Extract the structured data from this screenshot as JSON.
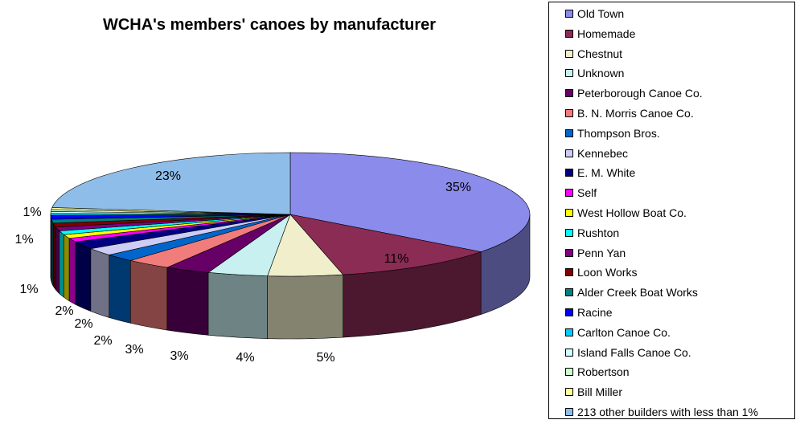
{
  "chart_data": {
    "type": "pie",
    "title": "WCHA's members' canoes by manufacturer",
    "legend_position": "right",
    "slices": [
      {
        "name": "Old Town",
        "value": 35,
        "label": "35%",
        "color": "#8b8beb"
      },
      {
        "name": "Homemade",
        "value": 11,
        "label": "11%",
        "color": "#8b2c55"
      },
      {
        "name": "Chestnut",
        "value": 5,
        "label": "5%",
        "color": "#f0eecb"
      },
      {
        "name": "Unknown",
        "value": 4,
        "label": "4%",
        "color": "#c8f0f0"
      },
      {
        "name": "Peterborough Canoe Co.",
        "value": 3,
        "label": "3%",
        "color": "#660066"
      },
      {
        "name": "B. N. Morris Canoe Co.",
        "value": 3,
        "label": "3%",
        "color": "#f07c7c"
      },
      {
        "name": "Thompson Bros.",
        "value": 2,
        "label": "2%",
        "color": "#0066cc"
      },
      {
        "name": "Kennebec",
        "value": 2,
        "label": "2%",
        "color": "#ccccf5"
      },
      {
        "name": "E. M. White",
        "value": 2,
        "label": "2%",
        "color": "#000080"
      },
      {
        "name": "Self",
        "value": 1,
        "label": "1%",
        "color": "#ff00ff"
      },
      {
        "name": "West Hollow Boat Co.",
        "value": 1,
        "label": "",
        "color": "#ffff00"
      },
      {
        "name": "Rushton",
        "value": 1,
        "label": "1%",
        "color": "#00ffff"
      },
      {
        "name": "Penn Yan",
        "value": 1,
        "label": "",
        "color": "#800080"
      },
      {
        "name": "Loon Works",
        "value": 1,
        "label": "",
        "color": "#800000"
      },
      {
        "name": "Alder Creek Boat Works",
        "value": 1,
        "label": "",
        "color": "#008080"
      },
      {
        "name": "Racine",
        "value": 1,
        "label": "1%",
        "color": "#0000ff"
      },
      {
        "name": "Carlton Canoe Co.",
        "value": 0.5,
        "label": "",
        "color": "#00ccff"
      },
      {
        "name": "Island Falls Canoe Co.",
        "value": 0.5,
        "label": "",
        "color": "#ccffff"
      },
      {
        "name": "Robertson",
        "value": 0.5,
        "label": "",
        "color": "#ccffcc"
      },
      {
        "name": "Bill Miller",
        "value": 0.5,
        "label": "",
        "color": "#ffff99"
      },
      {
        "name": "213 other builders with less than 1%",
        "value": 23,
        "label": "23%",
        "color": "#8fbde9"
      }
    ]
  }
}
